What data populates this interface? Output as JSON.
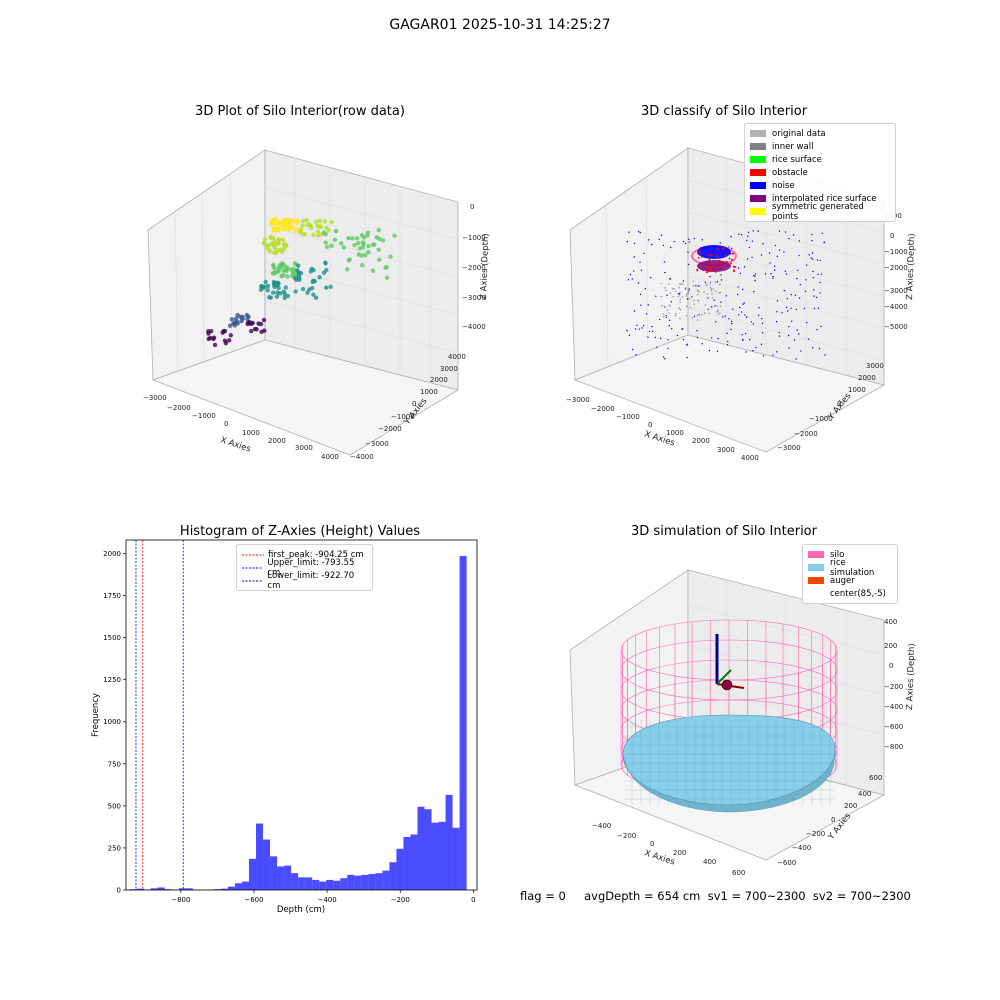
{
  "figure": {
    "suptitle": "GAGAR01 2025-10-31 14:25:27"
  },
  "footer": {
    "text": "flag = 0     avgDepth = 654 cm  sv1 = 700~2300  sv2 = 700~2300"
  },
  "panels": {
    "raw": {
      "title": "3D Plot of Silo Interior(row data)",
      "xlabel": "X Axies",
      "ylabel": "Y Axies",
      "zlabel": "Z Axies (Depth)",
      "xticks": [
        "−3000",
        "−2000",
        "−1000",
        "0",
        "1000",
        "2000",
        "3000",
        "4000"
      ],
      "yticks": [
        "−4000",
        "−3000",
        "−2000",
        "−1000",
        "0",
        "1000",
        "2000",
        "3000",
        "4000"
      ],
      "zticks": [
        "0",
        "−1000",
        "−2000",
        "−3000",
        "−4000"
      ]
    },
    "classify": {
      "title": "3D classify of Silo Interior",
      "xlabel": "X Axies",
      "ylabel": "Y Axies",
      "zlabel": "Z Axies (Depth)",
      "xticks": [
        "−3000",
        "−2000",
        "−1000",
        "0",
        "1000",
        "2000",
        "3000",
        "4000"
      ],
      "yticks": [
        "−3000",
        "−2000",
        "−1000",
        "0",
        "1000",
        "2000",
        "3000"
      ],
      "zticks": [
        "1000",
        "0",
        "−1000",
        "−2000",
        "−3000",
        "−4000",
        "−5000"
      ],
      "legend": [
        {
          "label": "original data",
          "color": "#b3b3b3"
        },
        {
          "label": "inner wall",
          "color": "#808080"
        },
        {
          "label": "rice surface",
          "color": "#00ff00"
        },
        {
          "label": "obstacle",
          "color": "#ff0000"
        },
        {
          "label": "noise",
          "color": "#0000ff"
        },
        {
          "label": "interpolated rice surface",
          "color": "#800080"
        },
        {
          "label": "symmetric generated points",
          "color": "#ffff00"
        }
      ]
    },
    "simulation": {
      "title": "3D simulation of Silo Interior",
      "xlabel": "X Axies",
      "ylabel": "Y Axies",
      "zlabel": "Z Axies (Depth)",
      "xticks": [
        "−400",
        "−200",
        "0",
        "200",
        "400",
        "600"
      ],
      "yticks": [
        "−600",
        "−400",
        "−200",
        "0",
        "200",
        "400",
        "600"
      ],
      "zticks": [
        "400",
        "200",
        "0",
        "−200",
        "−400",
        "−600",
        "−800"
      ],
      "legend": [
        {
          "label": "silo",
          "color": "#ff69b4"
        },
        {
          "label": "rice simulation",
          "color": "#87ceeb"
        },
        {
          "label": "auger",
          "color": "#ff4500"
        },
        {
          "label": "center(85,-5)",
          "color": "#ffffff"
        }
      ]
    }
  },
  "chart_data": {
    "type": "bar",
    "title": "Histogram of Z-Axies (Height) Values",
    "xlabel": "Depth (cm)",
    "ylabel": "Frequency",
    "xlim": [
      -950,
      10
    ],
    "ylim": [
      0,
      2080
    ],
    "xticks": [
      -800,
      -600,
      -400,
      -200,
      0
    ],
    "yticks": [
      0,
      250,
      500,
      750,
      1000,
      1250,
      1500,
      1750,
      2000
    ],
    "bin_width": 19.2,
    "bin_start": -940,
    "values": [
      5,
      8,
      3,
      10,
      15,
      5,
      2,
      10,
      10,
      2,
      1,
      2,
      5,
      8,
      20,
      40,
      50,
      185,
      395,
      300,
      200,
      140,
      145,
      100,
      75,
      75,
      60,
      50,
      60,
      55,
      70,
      90,
      85,
      90,
      95,
      100,
      115,
      165,
      245,
      315,
      330,
      495,
      480,
      400,
      405,
      565,
      370,
      1985
    ],
    "bar_color": "#0000ff",
    "vlines": [
      {
        "label": "first_peak: -904.25 cm",
        "x": -904.25,
        "color": "#ff0000"
      },
      {
        "label": "Upper_limit: -793.55 cm",
        "x": -793.55,
        "color": "#0000ff"
      },
      {
        "label": "Lower_limit: -922.70 cm",
        "x": -922.7,
        "color": "#0000ff"
      }
    ]
  }
}
